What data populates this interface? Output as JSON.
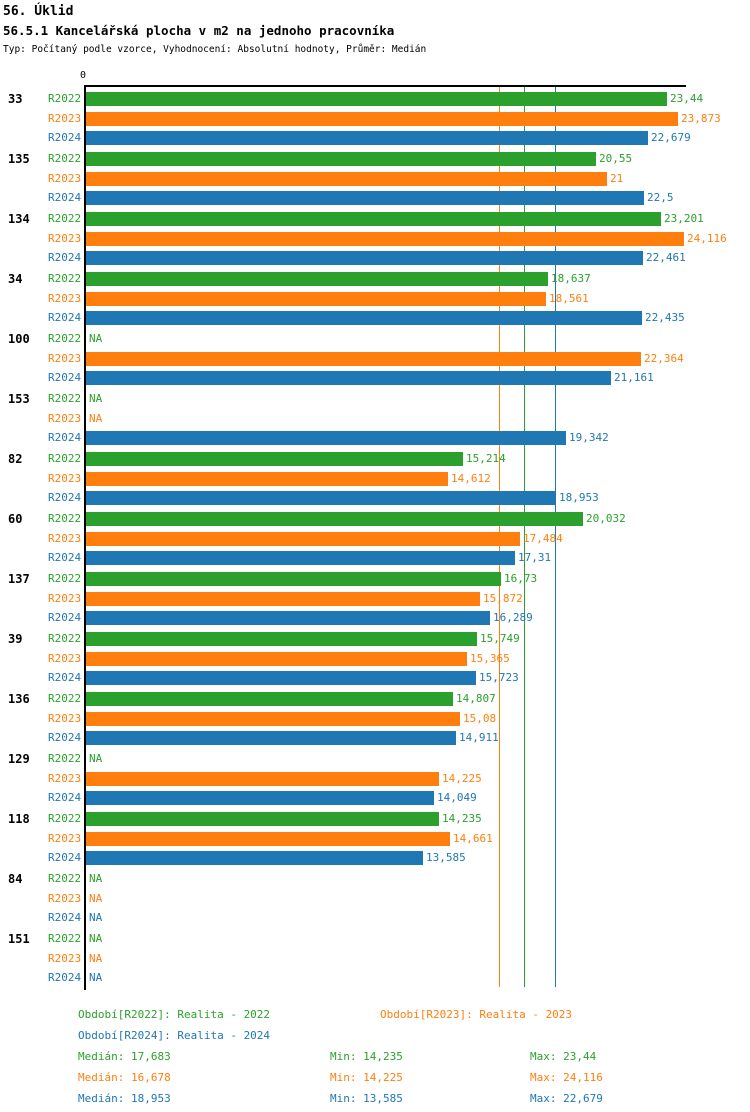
{
  "header": {
    "title": "56. Úklid",
    "subtitle": "56.5.1 Kancelářská plocha v m2 na jednoho pracovníka",
    "meta": "Typ: Počítaný podle vzorce, Vyhodnocení: Absolutní hodnoty, Průměr: Medián"
  },
  "colors": {
    "r2022": "#2ca02c",
    "r2023": "#ff7f0e",
    "r2024": "#1f77b4"
  },
  "chart_data": {
    "type": "bar",
    "orientation": "horizontal",
    "title": "56.5.1 Kancelářská plocha v m2 na jednoho pracovníka",
    "xlabel": "",
    "ylabel": "",
    "axis": {
      "zero_label": "0",
      "min": 0,
      "max_estimate": 24.116
    },
    "grid": false,
    "series_labels": [
      "R2022",
      "R2023",
      "R2024"
    ],
    "series_colors": [
      "#2ca02c",
      "#ff7f0e",
      "#1f77b4"
    ],
    "na_text": "NA",
    "reference_lines": [
      {
        "name": "median-r2023",
        "value": 16.678,
        "color": "#ff7f0e"
      },
      {
        "name": "median-r2022",
        "value": 17.683,
        "color": "#2ca02c"
      },
      {
        "name": "median-r2024",
        "value": 18.953,
        "color": "#1f77b4"
      }
    ],
    "groups": [
      {
        "category": "33",
        "values": [
          {
            "value": 23.44,
            "label": "23,44"
          },
          {
            "value": 23.873,
            "label": "23,873"
          },
          {
            "value": 22.679,
            "label": "22,679"
          }
        ]
      },
      {
        "category": "135",
        "values": [
          {
            "value": 20.55,
            "label": "20,55"
          },
          {
            "value": 21,
            "label": "21"
          },
          {
            "value": 22.5,
            "label": "22,5"
          }
        ]
      },
      {
        "category": "134",
        "values": [
          {
            "value": 23.201,
            "label": "23,201"
          },
          {
            "value": 24.116,
            "label": "24,116"
          },
          {
            "value": 22.461,
            "label": "22,461"
          }
        ]
      },
      {
        "category": "34",
        "values": [
          {
            "value": 18.637,
            "label": "18,637"
          },
          {
            "value": 18.561,
            "label": "18,561"
          },
          {
            "value": 22.435,
            "label": "22,435"
          }
        ]
      },
      {
        "category": "100",
        "values": [
          {
            "value": null,
            "label": "NA"
          },
          {
            "value": 22.364,
            "label": "22,364"
          },
          {
            "value": 21.161,
            "label": "21,161"
          }
        ]
      },
      {
        "category": "153",
        "values": [
          {
            "value": null,
            "label": "NA"
          },
          {
            "value": null,
            "label": "NA"
          },
          {
            "value": 19.342,
            "label": "19,342"
          }
        ]
      },
      {
        "category": "82",
        "values": [
          {
            "value": 15.214,
            "label": "15,214"
          },
          {
            "value": 14.612,
            "label": "14,612"
          },
          {
            "value": 18.953,
            "label": "18,953"
          }
        ]
      },
      {
        "category": "60",
        "values": [
          {
            "value": 20.032,
            "label": "20,032"
          },
          {
            "value": 17.484,
            "label": "17,484"
          },
          {
            "value": 17.31,
            "label": "17,31"
          }
        ]
      },
      {
        "category": "137",
        "values": [
          {
            "value": 16.73,
            "label": "16,73"
          },
          {
            "value": 15.872,
            "label": "15,872"
          },
          {
            "value": 16.289,
            "label": "16,289"
          }
        ]
      },
      {
        "category": "39",
        "values": [
          {
            "value": 15.749,
            "label": "15,749"
          },
          {
            "value": 15.365,
            "label": "15,365"
          },
          {
            "value": 15.723,
            "label": "15,723"
          }
        ]
      },
      {
        "category": "136",
        "values": [
          {
            "value": 14.807,
            "label": "14,807"
          },
          {
            "value": 15.08,
            "label": "15,08"
          },
          {
            "value": 14.911,
            "label": "14,911"
          }
        ]
      },
      {
        "category": "129",
        "values": [
          {
            "value": null,
            "label": "NA"
          },
          {
            "value": 14.225,
            "label": "14,225"
          },
          {
            "value": 14.049,
            "label": "14,049"
          }
        ]
      },
      {
        "category": "118",
        "values": [
          {
            "value": 14.235,
            "label": "14,235"
          },
          {
            "value": 14.661,
            "label": "14,661"
          },
          {
            "value": 13.585,
            "label": "13,585"
          }
        ]
      },
      {
        "category": "84",
        "values": [
          {
            "value": null,
            "label": "NA"
          },
          {
            "value": null,
            "label": "NA"
          },
          {
            "value": null,
            "label": "NA"
          }
        ]
      },
      {
        "category": "151",
        "values": [
          {
            "value": null,
            "label": "NA"
          },
          {
            "value": null,
            "label": "NA"
          },
          {
            "value": null,
            "label": "NA"
          }
        ]
      }
    ]
  },
  "legend": {
    "period_r2022": "Období[R2022]: Realita - 2022",
    "period_r2023": "Období[R2023]: Realita - 2023",
    "period_r2024": "Období[R2024]: Realita - 2024",
    "stats_r2022": {
      "median": "Medián: 17,683",
      "min": "Min: 14,235",
      "max": "Max: 23,44"
    },
    "stats_r2023": {
      "median": "Medián: 16,678",
      "min": "Min: 14,225",
      "max": "Max: 24,116"
    },
    "stats_r2024": {
      "median": "Medián: 18,953",
      "min": "Min: 13,585",
      "max": "Max: 22,679"
    }
  }
}
